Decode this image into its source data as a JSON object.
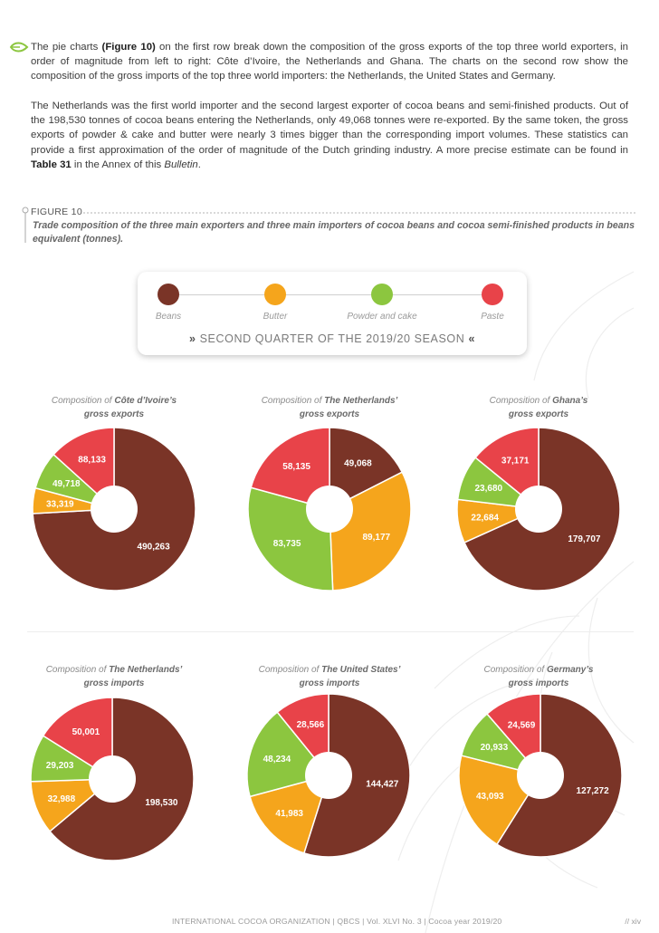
{
  "paragraph1": {
    "t1": "The pie charts ",
    "b1": "(Figure 10)",
    "t2": " on the first row break down the composition of the gross exports of the top three world exporters, in order of magnitude from left to right: Côte d’Ivoire, the Netherlands and Ghana. The charts on the second row show the composition of the gross imports of the top three world importers: the Netherlands, the United States and Germany."
  },
  "paragraph2": {
    "t1": "The Netherlands was the first world importer and the second largest exporter of cocoa beans and semi-finished products. Out of the 198,530 tonnes of cocoa beans entering the Netherlands, only 49,068 tonnes were re-exported. By the same token, the gross exports of powder & cake and butter were nearly 3 times bigger than the corresponding import volumes. These statistics can provide a first approximation of the order of magnitude of the Dutch grinding industry. A more precise estimate can be found in ",
    "b1": "Table 31",
    "t2": " in the Annex of this ",
    "i1": "Bulletin",
    "t3": "."
  },
  "figure": {
    "tag": "FIGURE 10",
    "caption": "Trade composition of the three main exporters and three main importers of cocoa beans and cocoa semi-finished products in beans equivalent (tonnes)."
  },
  "legend": {
    "items": [
      {
        "label": "Beans",
        "color": "#7a3427"
      },
      {
        "label": "Butter",
        "color": "#f5a51c"
      },
      {
        "label": "Powder and cake",
        "color": "#8cc63f"
      },
      {
        "label": "Paste",
        "color": "#e84349"
      }
    ],
    "chevron_left": "»",
    "chevron_right": "«",
    "season": "SECOND QUARTER OF THE 2019/20 SEASON"
  },
  "colors": {
    "beans": "#7a3427",
    "butter": "#f5a51c",
    "powder": "#8cc63f",
    "paste": "#e84349"
  },
  "chart_data": [
    {
      "type": "pie",
      "prefix": "Composition of ",
      "country": "Côte d’Ivoire’s",
      "subtitle": "gross exports",
      "categories": [
        "Beans",
        "Butter",
        "Powder and cake",
        "Paste"
      ],
      "values": [
        490263,
        33319,
        49718,
        88133
      ],
      "labels": [
        "490,263",
        "33,319",
        "49,718",
        "88,133"
      ]
    },
    {
      "type": "pie",
      "prefix": "Composition of ",
      "country": "The Netherlands’",
      "subtitle": "gross exports",
      "categories": [
        "Beans",
        "Butter",
        "Powder and cake",
        "Paste"
      ],
      "values": [
        49068,
        89177,
        83735,
        58135
      ],
      "labels": [
        "49,068",
        "89,177",
        "83,735",
        "58,135"
      ]
    },
    {
      "type": "pie",
      "prefix": "Composition of ",
      "country": "Ghana’s",
      "subtitle": "gross exports",
      "categories": [
        "Beans",
        "Butter",
        "Powder and cake",
        "Paste"
      ],
      "values": [
        179707,
        22684,
        23680,
        37171
      ],
      "labels": [
        "179,707",
        "22,684",
        "23,680",
        "37,171"
      ]
    },
    {
      "type": "pie",
      "prefix": "Composition of ",
      "country": "The Netherlands’",
      "subtitle": "gross imports",
      "categories": [
        "Beans",
        "Butter",
        "Powder and cake",
        "Paste"
      ],
      "values": [
        198530,
        32988,
        29203,
        50001
      ],
      "labels": [
        "198,530",
        "32,988",
        "29,203",
        "50,001"
      ]
    },
    {
      "type": "pie",
      "prefix": "Composition of ",
      "country": "The United States’",
      "subtitle": "gross imports",
      "categories": [
        "Beans",
        "Butter",
        "Powder and cake",
        "Paste"
      ],
      "values": [
        144427,
        41983,
        48234,
        28566
      ],
      "labels": [
        "144,427",
        "41,983",
        "48,234",
        "28,566"
      ]
    },
    {
      "type": "pie",
      "prefix": "Composition of ",
      "country": "Germany’s",
      "subtitle": "gross imports",
      "categories": [
        "Beans",
        "Butter",
        "Powder and cake",
        "Paste"
      ],
      "values": [
        127272,
        43093,
        20933,
        24569
      ],
      "labels": [
        "127,272",
        "43,093",
        "20,933",
        "24,569"
      ]
    }
  ],
  "footer": {
    "left": "INTERNATIONAL COCOA ORGANIZATION | QBCS | Vol. XLVI No. 3 | Cocoa year 2019/20",
    "right": "// xiv"
  }
}
